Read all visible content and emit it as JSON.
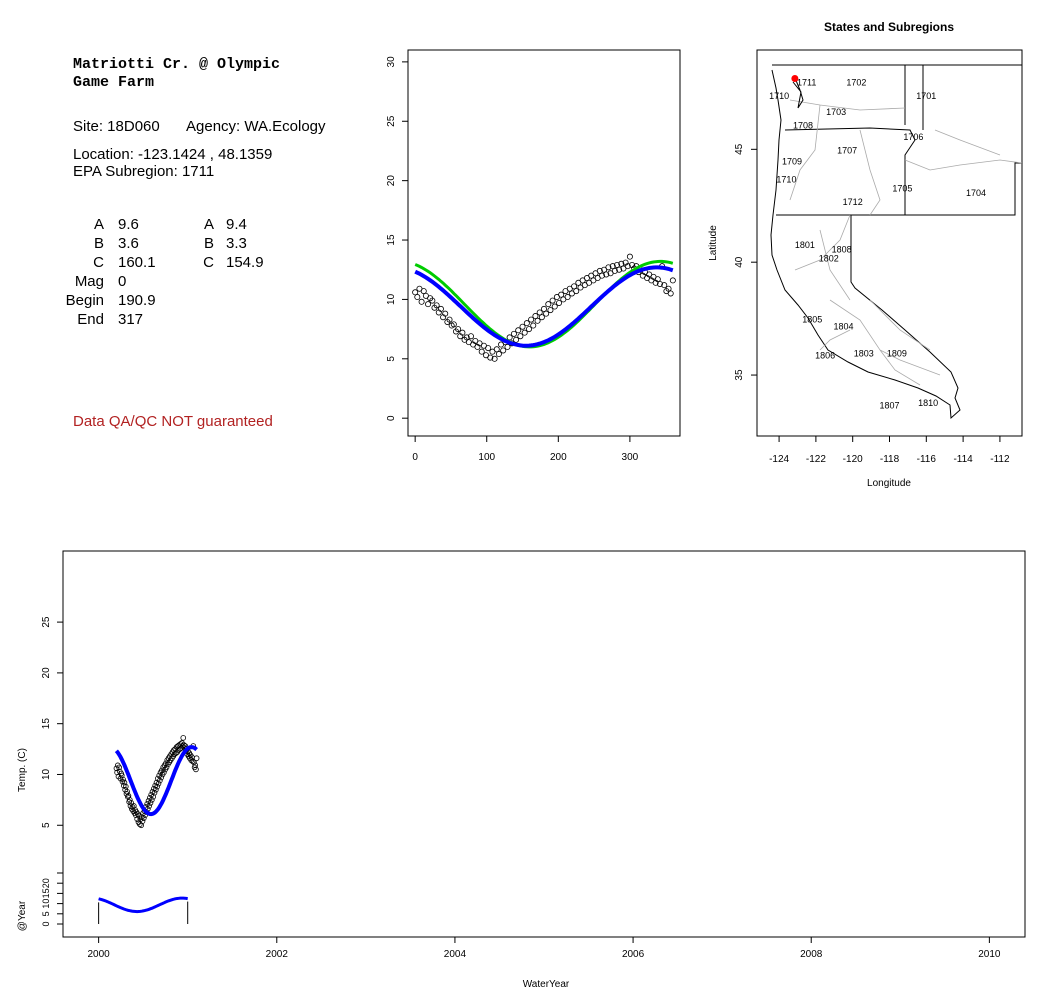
{
  "info": {
    "site_title_line1": "Matriotti Cr. @ Olympic",
    "site_title_line2": "Game Farm",
    "site_line": "Site: 18D060",
    "agency_line": "Agency: WA.Ecology",
    "location_line": "Location: -123.1424 , 48.1359",
    "subregion_line": "EPA Subregion: 1711",
    "params_left": [
      {
        "label": "A",
        "value": "9.6"
      },
      {
        "label": "B",
        "value": "3.6"
      },
      {
        "label": "C",
        "value": "160.1"
      },
      {
        "label": "Mag",
        "value": "0"
      },
      {
        "label": "Begin",
        "value": "190.9"
      },
      {
        "label": "End",
        "value": "317"
      }
    ],
    "params_right": [
      {
        "label": "A",
        "value": "9.4"
      },
      {
        "label": "B",
        "value": "3.3"
      },
      {
        "label": "C",
        "value": "154.9"
      }
    ],
    "warning": "Data QA/QC NOT guaranteed",
    "warning_color": "#b22222"
  },
  "chart_data": [
    {
      "id": "seasonal",
      "type": "scatter",
      "title": "",
      "xlabel": "",
      "ylabel": "",
      "xlim": [
        -10,
        370
      ],
      "ylim": [
        -1.5,
        31
      ],
      "x_ticks": [
        0,
        100,
        200,
        300
      ],
      "y_ticks": [
        0,
        5,
        10,
        15,
        20,
        25,
        30
      ],
      "grid": false,
      "points": [
        [
          0,
          10.6
        ],
        [
          3,
          10.2
        ],
        [
          6,
          10.9
        ],
        [
          9,
          9.8
        ],
        [
          12,
          10.7
        ],
        [
          15,
          10.3
        ],
        [
          18,
          9.6
        ],
        [
          21,
          10.1
        ],
        [
          24,
          9.9
        ],
        [
          27,
          9.3
        ],
        [
          30,
          9.5
        ],
        [
          33,
          8.9
        ],
        [
          36,
          9.2
        ],
        [
          39,
          8.5
        ],
        [
          42,
          8.8
        ],
        [
          45,
          8.1
        ],
        [
          48,
          8.3
        ],
        [
          51,
          7.8
        ],
        [
          54,
          7.9
        ],
        [
          57,
          7.3
        ],
        [
          60,
          7.5
        ],
        [
          63,
          6.9
        ],
        [
          66,
          7.2
        ],
        [
          69,
          6.6
        ],
        [
          72,
          6.8
        ],
        [
          75,
          6.4
        ],
        [
          78,
          6.9
        ],
        [
          81,
          6.2
        ],
        [
          84,
          6.5
        ],
        [
          87,
          6.0
        ],
        [
          90,
          6.3
        ],
        [
          93,
          5.6
        ],
        [
          96,
          6.1
        ],
        [
          99,
          5.3
        ],
        [
          102,
          5.9
        ],
        [
          105,
          5.1
        ],
        [
          108,
          5.6
        ],
        [
          111,
          5.0
        ],
        [
          114,
          5.8
        ],
        [
          117,
          5.4
        ],
        [
          120,
          6.2
        ],
        [
          123,
          5.7
        ],
        [
          126,
          6.4
        ],
        [
          129,
          6.0
        ],
        [
          132,
          6.8
        ],
        [
          135,
          6.3
        ],
        [
          138,
          7.1
        ],
        [
          141,
          6.6
        ],
        [
          144,
          7.4
        ],
        [
          147,
          6.9
        ],
        [
          150,
          7.7
        ],
        [
          153,
          7.2
        ],
        [
          156,
          8.0
        ],
        [
          159,
          7.5
        ],
        [
          162,
          8.3
        ],
        [
          165,
          7.8
        ],
        [
          168,
          8.6
        ],
        [
          171,
          8.2
        ],
        [
          174,
          8.9
        ],
        [
          177,
          8.5
        ],
        [
          180,
          9.2
        ],
        [
          183,
          8.8
        ],
        [
          186,
          9.6
        ],
        [
          189,
          9.1
        ],
        [
          192,
          9.9
        ],
        [
          195,
          9.4
        ],
        [
          198,
          10.2
        ],
        [
          201,
          9.7
        ],
        [
          204,
          10.4
        ],
        [
          207,
          10.0
        ],
        [
          210,
          10.7
        ],
        [
          213,
          10.2
        ],
        [
          216,
          10.9
        ],
        [
          219,
          10.5
        ],
        [
          222,
          11.1
        ],
        [
          225,
          10.7
        ],
        [
          228,
          11.4
        ],
        [
          231,
          11.0
        ],
        [
          234,
          11.6
        ],
        [
          237,
          11.2
        ],
        [
          240,
          11.8
        ],
        [
          243,
          11.4
        ],
        [
          246,
          12.0
        ],
        [
          249,
          11.6
        ],
        [
          252,
          12.2
        ],
        [
          255,
          11.8
        ],
        [
          258,
          12.4
        ],
        [
          261,
          12.0
        ],
        [
          264,
          12.5
        ],
        [
          267,
          12.1
        ],
        [
          270,
          12.7
        ],
        [
          273,
          12.2
        ],
        [
          276,
          12.8
        ],
        [
          279,
          12.4
        ],
        [
          282,
          12.9
        ],
        [
          285,
          12.5
        ],
        [
          288,
          13.0
        ],
        [
          291,
          12.6
        ],
        [
          294,
          13.1
        ],
        [
          297,
          12.8
        ],
        [
          300,
          13.6
        ],
        [
          303,
          12.9
        ],
        [
          306,
          12.6
        ],
        [
          309,
          12.8
        ],
        [
          312,
          12.3
        ],
        [
          315,
          12.5
        ],
        [
          318,
          12.0
        ],
        [
          321,
          12.3
        ],
        [
          324,
          11.8
        ],
        [
          327,
          12.1
        ],
        [
          330,
          11.6
        ],
        [
          333,
          11.9
        ],
        [
          336,
          11.4
        ],
        [
          339,
          11.7
        ],
        [
          342,
          11.3
        ],
        [
          345,
          12.8
        ],
        [
          348,
          11.2
        ],
        [
          351,
          10.7
        ],
        [
          354,
          10.9
        ],
        [
          357,
          10.5
        ],
        [
          360,
          11.6
        ]
      ],
      "series": [
        {
          "name": "",
          "color": "#00cc00",
          "A": 9.6,
          "B": 3.6,
          "C": 160.1
        },
        {
          "name": "",
          "color": "#0000ff",
          "A": 9.4,
          "B": 3.3,
          "C": 154.9
        }
      ]
    },
    {
      "id": "map",
      "type": "map",
      "title": "States and Subregions",
      "xlabel": "Longitude",
      "ylabel": "Latitude",
      "xlim": [
        -125.2,
        -110.8
      ],
      "ylim": [
        32.3,
        49.4
      ],
      "x_ticks": [
        -124,
        -122,
        -120,
        -118,
        -116,
        -114,
        -112
      ],
      "y_ticks": [
        35,
        40,
        45
      ],
      "site_marker": {
        "lon": -123.1424,
        "lat": 48.1359,
        "color": "#ff0000"
      },
      "regions": [
        {
          "label": "1711",
          "lon": -122.5,
          "lat": 48.0
        },
        {
          "label": "1702",
          "lon": -119.8,
          "lat": 48.0
        },
        {
          "label": "1701",
          "lon": -116.0,
          "lat": 47.4
        },
        {
          "label": "1710",
          "lon": -124.0,
          "lat": 47.4
        },
        {
          "label": "1703",
          "lon": -120.9,
          "lat": 46.7
        },
        {
          "label": "1708",
          "lon": -122.7,
          "lat": 46.1
        },
        {
          "label": "1706",
          "lon": -116.7,
          "lat": 45.6
        },
        {
          "label": "1707",
          "lon": -120.3,
          "lat": 45.0
        },
        {
          "label": "1709",
          "lon": -123.3,
          "lat": 44.5
        },
        {
          "label": "1710",
          "lon": -123.6,
          "lat": 43.7
        },
        {
          "label": "1705",
          "lon": -117.3,
          "lat": 43.3
        },
        {
          "label": "1704",
          "lon": -113.3,
          "lat": 43.1
        },
        {
          "label": "1712",
          "lon": -120.0,
          "lat": 42.7
        },
        {
          "label": "1801",
          "lon": -122.6,
          "lat": 40.8
        },
        {
          "label": "1808",
          "lon": -120.6,
          "lat": 40.6
        },
        {
          "label": "1802",
          "lon": -121.3,
          "lat": 40.2
        },
        {
          "label": "1805",
          "lon": -122.2,
          "lat": 37.5
        },
        {
          "label": "1804",
          "lon": -120.5,
          "lat": 37.2
        },
        {
          "label": "1809",
          "lon": -117.6,
          "lat": 36.0
        },
        {
          "label": "1806",
          "lon": -121.5,
          "lat": 35.9
        },
        {
          "label": "1803",
          "lon": -119.4,
          "lat": 36.0
        },
        {
          "label": "1810",
          "lon": -115.9,
          "lat": 33.8
        },
        {
          "label": "1807",
          "lon": -118.0,
          "lat": 33.7
        }
      ]
    },
    {
      "id": "timeseries",
      "type": "scatter",
      "title": "",
      "xlabel": "WaterYear",
      "ylabel": "Temp. (C)",
      "xlim": [
        1999.6,
        2010.4
      ],
      "ylim": [
        -6,
        32
      ],
      "x_ticks": [
        2000,
        2002,
        2004,
        2006,
        2008,
        2010
      ],
      "y_ticks": [
        5,
        10,
        15,
        20,
        25
      ],
      "grid": false,
      "start": 2000.2,
      "end": 2001.1,
      "fit_color": "#0000ff",
      "point_color": "#000000"
    },
    {
      "id": "year_strip",
      "type": "line",
      "ylabel": "@Year",
      "y_ticks": [
        0,
        5,
        10,
        15,
        20
      ],
      "y_ticks_extra": [
        25
      ],
      "start": 2000.0,
      "end": 2001.0,
      "color": "#0000ff"
    }
  ]
}
